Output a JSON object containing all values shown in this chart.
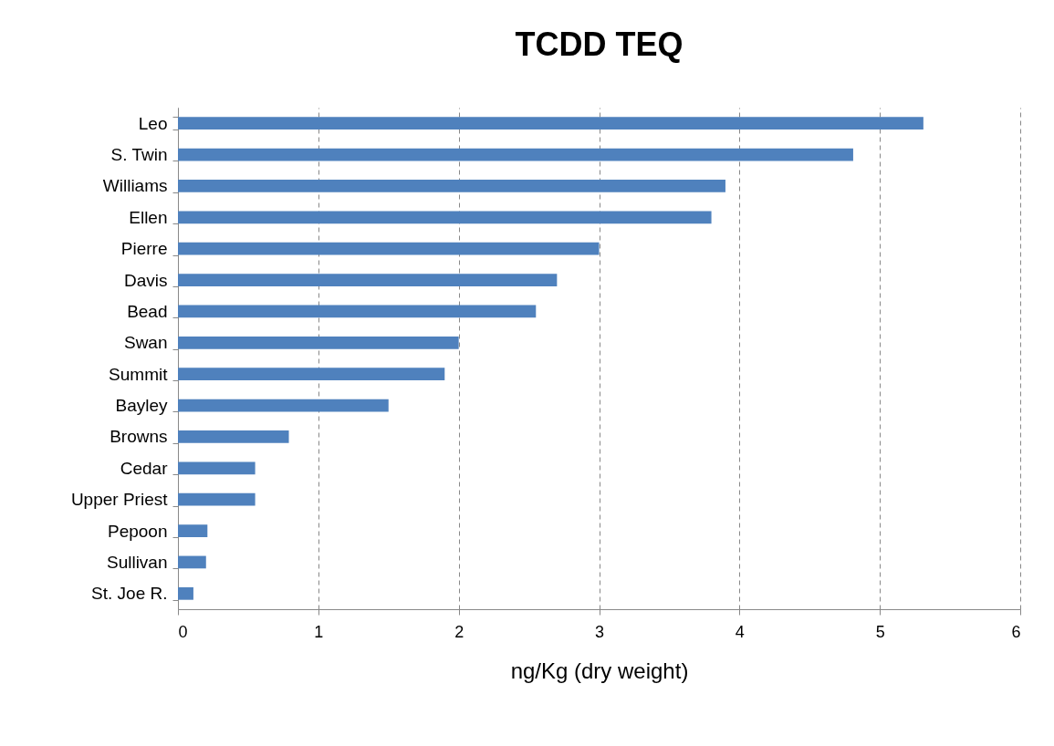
{
  "chart_data": {
    "type": "bar",
    "orientation": "horizontal",
    "title": "TCDD TEQ",
    "xlabel": "ng/Kg (dry weight)",
    "categories": [
      "Leo",
      "S. Twin",
      "Williams",
      "Ellen",
      "Pierre",
      "Davis",
      "Bead",
      "Swan",
      "Summit",
      "Bayley",
      "Browns",
      "Cedar",
      "Upper Priest",
      "Pepoon",
      "Sullivan",
      "St. Joe R."
    ],
    "values": [
      5.31,
      4.81,
      3.9,
      3.8,
      3.0,
      2.7,
      2.55,
      2.0,
      1.9,
      1.5,
      0.79,
      0.55,
      0.55,
      0.21,
      0.2,
      0.11
    ],
    "color": "#4f81bd",
    "xlim": [
      0,
      6
    ],
    "xticks": [
      0,
      1,
      2,
      3,
      4,
      5,
      6
    ],
    "grid": "x"
  }
}
